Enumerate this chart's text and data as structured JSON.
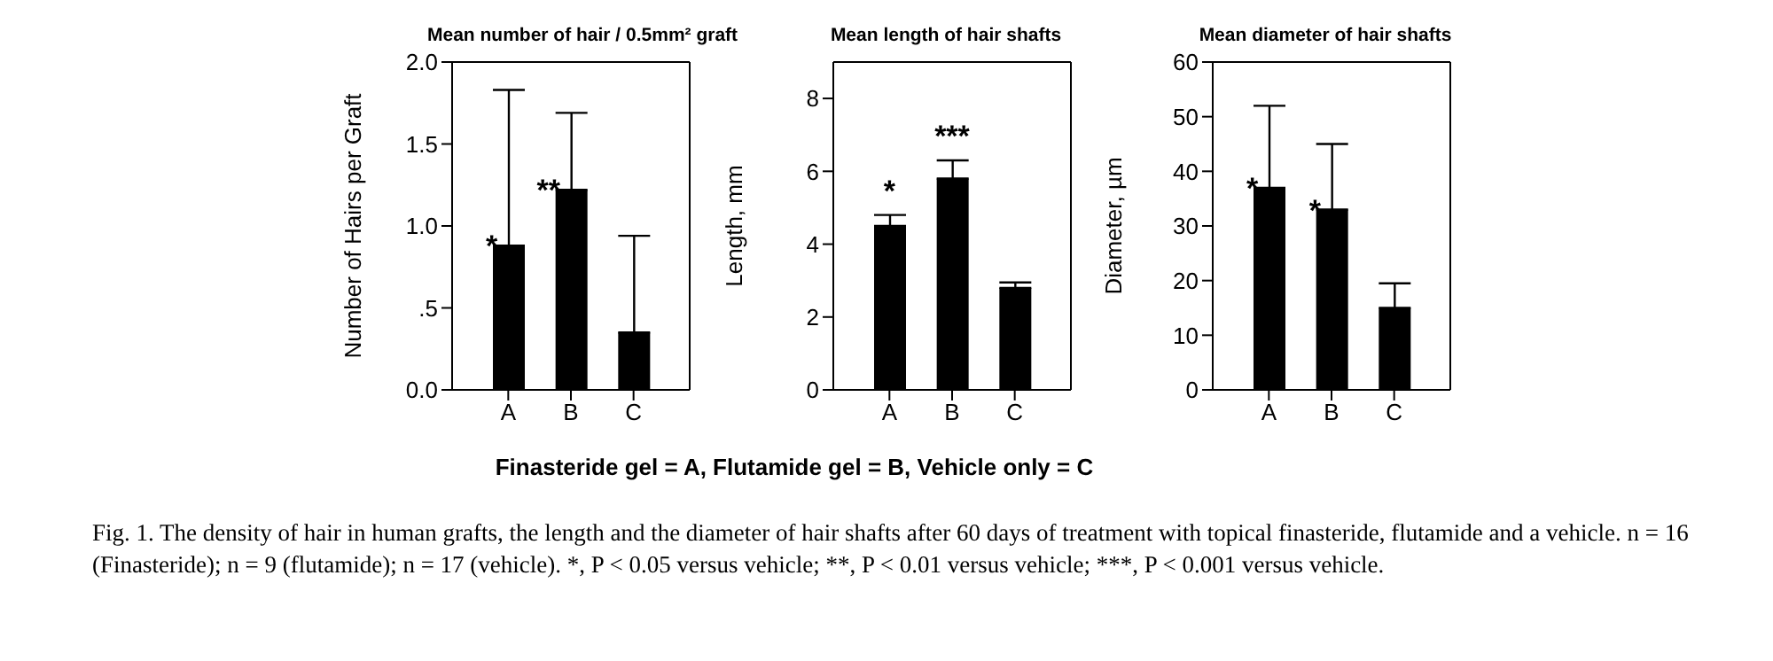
{
  "chart_data": [
    {
      "type": "bar",
      "title": "Mean number of hair / 0.5mm² graft",
      "ylabel": "Number of Hairs per Graft",
      "categories": [
        "A",
        "B",
        "C"
      ],
      "values": [
        0.88,
        1.22,
        0.35
      ],
      "color": "#000000",
      "errors": [
        [
          0.88,
          1.83
        ],
        [
          1.22,
          1.69
        ],
        [
          0.35,
          0.94
        ]
      ],
      "ylim": [
        0,
        2
      ],
      "yticks": [
        {
          "value": 0,
          "label": "0.0"
        },
        {
          "value": 0.5,
          "label": ".5"
        },
        {
          "value": 1,
          "label": "1.0"
        },
        {
          "value": 1.5,
          "label": "1.5"
        },
        {
          "value": 2,
          "label": "2.0"
        }
      ],
      "annotations": [
        {
          "text": "*",
          "x": "A",
          "y": 0.88
        },
        {
          "text": "**",
          "x": "B",
          "y": 1.22
        }
      ]
    },
    {
      "type": "bar",
      "title": "Mean length of hair shafts",
      "ylabel": "Length, mm",
      "categories": [
        "A",
        "B",
        "C"
      ],
      "values": [
        4.5,
        5.8,
        2.8
      ],
      "color": "#000000",
      "errors": [
        [
          4.5,
          4.8
        ],
        [
          5.8,
          6.3
        ],
        [
          2.8,
          2.95
        ]
      ],
      "ylim": [
        0,
        9
      ],
      "yticks": [
        0,
        2,
        4,
        6,
        8
      ],
      "annotations": [
        {
          "text": "*",
          "x": "A",
          "y": 4.5
        },
        {
          "text": "***",
          "x": "B",
          "y": 5.8
        },
        "Finasteride gel = A, Flutamide gel = B, Vehicle only = C",
        "Fig. 1. The density of hair in human grafts, the length and the diameter of hair shafts after 60 days of treatment with topical finasteride, flutamide and a vehicle. n = 16 (Finasteride); n = 9 (flutamide); n = 17 (vehicle). *, P < 0.05 versus vehicle; **, P < 0.01 versus vehicle; ***, P < 0.001 versus vehicle."
      ]
    },
    {
      "type": "bar",
      "title": "Mean diameter of hair shafts",
      "ylabel": "Diameter, µm",
      "categories": [
        "A",
        "B",
        "C"
      ],
      "values": [
        37,
        33,
        15
      ],
      "color": "#000000",
      "errors": [
        [
          37,
          52
        ],
        [
          33,
          45
        ],
        [
          15,
          19.5
        ]
      ],
      "ylim": [
        0,
        60
      ],
      "yticks": [
        0,
        10,
        20,
        30,
        40,
        50,
        60
      ],
      "annotations": [
        {
          "text": "*",
          "x": "A",
          "y": 37
        },
        {
          "text": "*",
          "x": "B",
          "y": 33
        }
      ]
    }
  ]
}
